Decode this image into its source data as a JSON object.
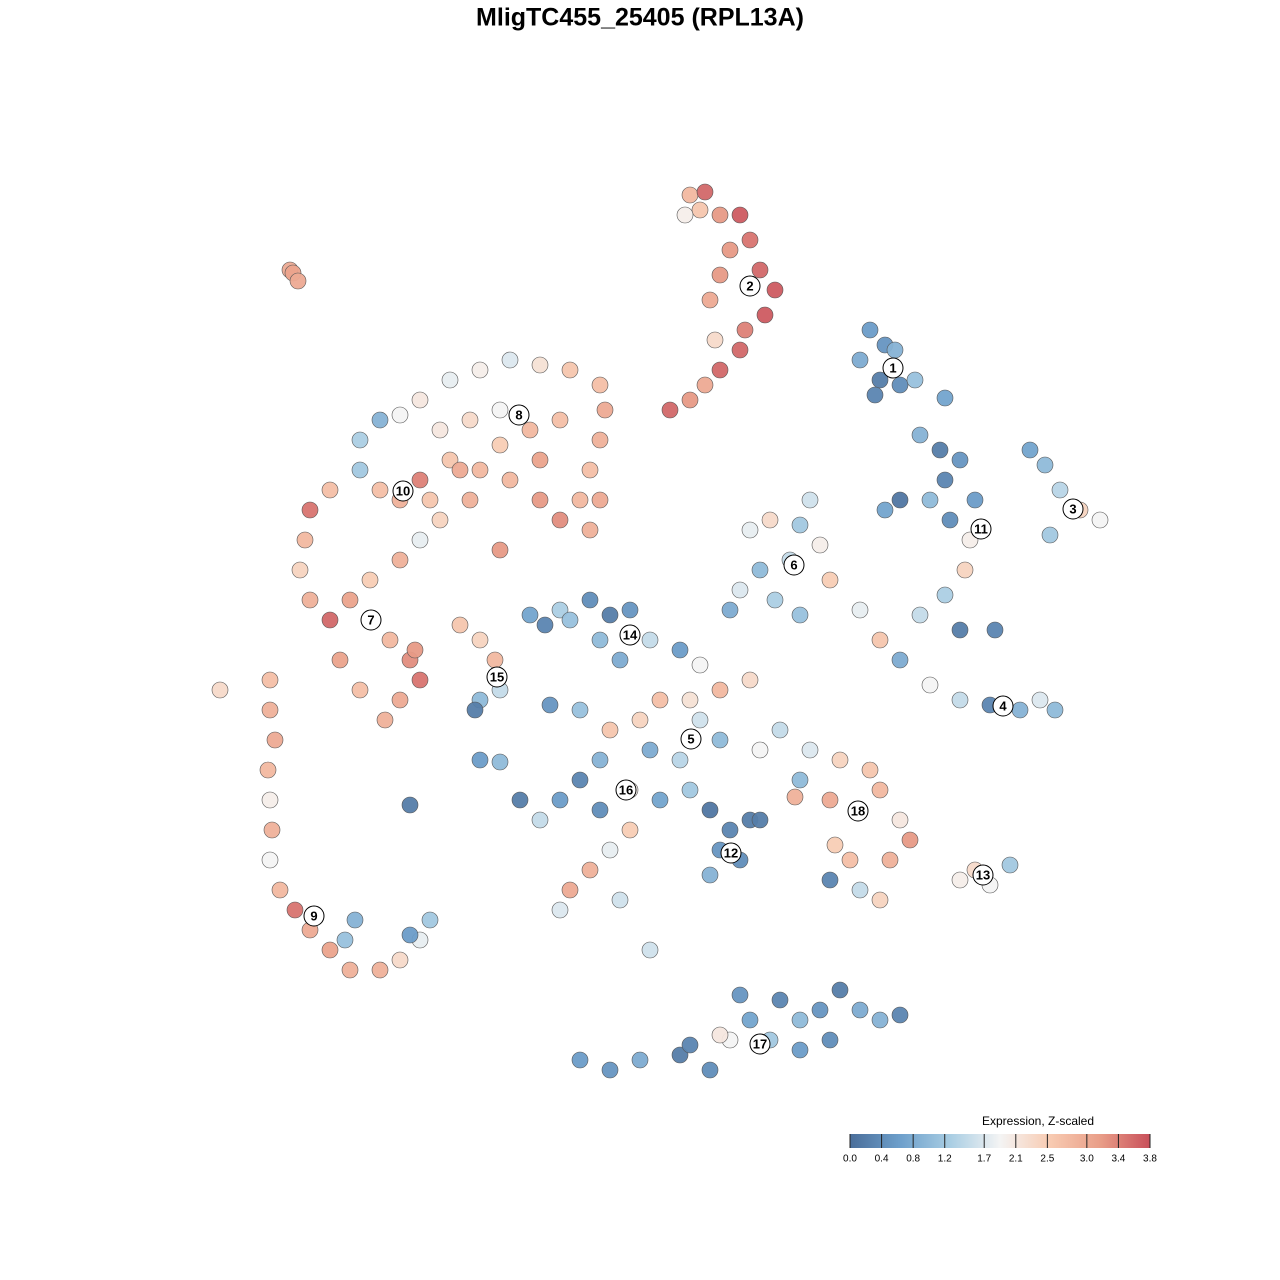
{
  "chart_data": {
    "type": "scatter",
    "title": "MligTC455_25405 (RPL13A)",
    "xlim": [
      0,
      1280
    ],
    "ylim": [
      1280,
      0
    ],
    "x": [
      690,
      705,
      720,
      740,
      750,
      760,
      775,
      765,
      745,
      740,
      720,
      705,
      690,
      670,
      710,
      720,
      700,
      685,
      730,
      715,
      290,
      293,
      298,
      870,
      885,
      860,
      880,
      900,
      875,
      895,
      915,
      945,
      1030,
      1045,
      1060,
      1080,
      1100,
      1050,
      920,
      940,
      960,
      945,
      930,
      900,
      885,
      950,
      970,
      965,
      945,
      920,
      960,
      995,
      975,
      860,
      880,
      900,
      930,
      960,
      990,
      1020,
      1055,
      1040,
      750,
      770,
      800,
      820,
      790,
      760,
      740,
      730,
      775,
      800,
      830,
      810,
      360,
      380,
      400,
      420,
      450,
      480,
      510,
      540,
      570,
      600,
      605,
      600,
      590,
      600,
      590,
      560,
      540,
      510,
      480,
      450,
      420,
      400,
      380,
      360,
      330,
      310,
      305,
      300,
      310,
      330,
      350,
      370,
      400,
      420,
      440,
      470,
      500,
      530,
      560,
      470,
      440,
      500,
      540,
      460,
      580,
      500,
      430,
      370,
      390,
      410,
      420,
      400,
      385,
      360,
      340,
      415,
      270,
      270,
      275,
      268,
      270,
      272,
      270,
      280,
      295,
      310,
      330,
      350,
      380,
      400,
      420,
      430,
      410,
      355,
      345,
      220,
      460,
      480,
      495,
      500,
      480,
      475,
      530,
      560,
      590,
      610,
      630,
      600,
      620,
      650,
      680,
      700,
      570,
      545,
      690,
      660,
      640,
      700,
      720,
      680,
      650,
      610,
      600,
      580,
      560,
      540,
      520,
      600,
      630,
      660,
      690,
      710,
      730,
      750,
      720,
      710,
      740,
      760,
      630,
      610,
      590,
      570,
      620,
      560,
      760,
      780,
      750,
      720,
      480,
      500,
      550,
      580,
      410,
      650,
      810,
      840,
      870,
      880,
      860,
      830,
      900,
      910,
      890,
      850,
      830,
      860,
      880,
      800,
      795,
      835,
      960,
      975,
      990,
      1010,
      580,
      610,
      640,
      680,
      710,
      730,
      750,
      780,
      800,
      820,
      840,
      860,
      880,
      900,
      830,
      800,
      770,
      740,
      720,
      690
    ],
    "y": [
      195,
      192,
      215,
      215,
      240,
      270,
      290,
      315,
      330,
      350,
      370,
      385,
      400,
      410,
      300,
      275,
      210,
      215,
      250,
      340,
      270,
      273,
      281,
      330,
      345,
      360,
      380,
      385,
      395,
      350,
      380,
      398,
      450,
      465,
      490,
      510,
      520,
      535,
      435,
      450,
      460,
      480,
      500,
      500,
      510,
      520,
      540,
      570,
      595,
      615,
      630,
      630,
      500,
      610,
      640,
      660,
      685,
      700,
      705,
      710,
      710,
      700,
      530,
      520,
      525,
      545,
      560,
      570,
      590,
      610,
      600,
      615,
      580,
      500,
      440,
      420,
      415,
      400,
      380,
      370,
      360,
      365,
      370,
      385,
      410,
      440,
      470,
      500,
      530,
      520,
      500,
      480,
      470,
      460,
      480,
      500,
      490,
      470,
      490,
      510,
      540,
      570,
      600,
      620,
      600,
      580,
      560,
      540,
      520,
      500,
      445,
      430,
      420,
      420,
      430,
      410,
      460,
      470,
      500,
      550,
      500,
      620,
      640,
      660,
      680,
      700,
      720,
      690,
      660,
      650,
      680,
      710,
      740,
      770,
      800,
      830,
      860,
      890,
      910,
      930,
      950,
      970,
      970,
      960,
      940,
      920,
      935,
      920,
      940,
      690,
      625,
      640,
      660,
      690,
      700,
      710,
      615,
      610,
      600,
      615,
      610,
      640,
      660,
      640,
      650,
      665,
      620,
      625,
      700,
      700,
      720,
      720,
      740,
      760,
      750,
      730,
      760,
      780,
      800,
      820,
      800,
      810,
      790,
      800,
      790,
      810,
      830,
      820,
      850,
      875,
      860,
      820,
      830,
      850,
      870,
      890,
      900,
      910,
      750,
      730,
      680,
      690,
      760,
      762,
      705,
      710,
      805,
      950,
      750,
      760,
      770,
      790,
      810,
      800,
      820,
      840,
      860,
      860,
      880,
      890,
      900,
      780,
      797,
      845,
      880,
      870,
      885,
      865,
      1060,
      1070,
      1060,
      1055,
      1070,
      1040,
      1020,
      1000,
      1020,
      1010,
      990,
      1010,
      1020,
      1015,
      1040,
      1050,
      1040,
      995,
      1035,
      1045
    ],
    "values": [
      2.8,
      3.6,
      3.2,
      3.7,
      3.5,
      3.6,
      3.7,
      3.7,
      3.4,
      3.6,
      3.6,
      3.0,
      3.2,
      3.6,
      3.0,
      3.2,
      2.6,
      2.0,
      3.2,
      2.3,
      3.0,
      3.1,
      3.0,
      0.6,
      0.5,
      0.8,
      0.2,
      0.4,
      0.3,
      0.9,
      1.1,
      0.7,
      0.7,
      1.0,
      1.4,
      2.4,
      1.9,
      1.2,
      0.9,
      0.2,
      0.5,
      0.3,
      1.0,
      0.1,
      0.7,
      0.4,
      2.0,
      2.4,
      1.3,
      1.5,
      0.2,
      0.3,
      0.6,
      1.8,
      2.6,
      0.8,
      1.9,
      1.5,
      0.3,
      0.9,
      1.0,
      1.7,
      1.8,
      2.3,
      1.2,
      2.0,
      1.5,
      1.0,
      1.7,
      0.8,
      1.3,
      1.1,
      2.5,
      1.6,
      1.3,
      0.9,
      1.9,
      2.1,
      1.8,
      2.0,
      1.7,
      2.2,
      2.6,
      2.7,
      3.0,
      2.9,
      2.7,
      3.0,
      2.9,
      3.3,
      3.2,
      2.8,
      2.8,
      2.6,
      3.4,
      2.9,
      2.7,
      1.2,
      2.7,
      3.5,
      2.8,
      2.4,
      2.9,
      3.6,
      3.1,
      2.5,
      2.9,
      1.8,
      2.4,
      2.9,
      2.5,
      2.8,
      2.7,
      2.3,
      2.1,
      1.9,
      3.1,
      3.0,
      2.8,
      3.2,
      2.6,
      2.4,
      2.8,
      3.3,
      3.5,
      3.0,
      2.9,
      2.7,
      3.1,
      3.2,
      2.7,
      2.9,
      3.0,
      2.8,
      2.0,
      2.9,
      1.9,
      2.8,
      3.5,
      3.0,
      3.1,
      2.9,
      2.9,
      2.3,
      1.8,
      1.2,
      0.6,
      0.9,
      1.1,
      2.3,
      2.6,
      2.4,
      2.8,
      1.5,
      1.0,
      0.2,
      0.7,
      1.3,
      0.4,
      0.2,
      0.5,
      1.0,
      0.8,
      1.5,
      0.6,
      1.9,
      1.1,
      0.3,
      2.2,
      2.7,
      2.4,
      1.6,
      1.0,
      1.4,
      0.8,
      2.6,
      0.9,
      0.3,
      0.6,
      1.5,
      0.2,
      0.4,
      2.0,
      0.7,
      1.2,
      0.1,
      0.3,
      0.2,
      0.5,
      0.9,
      0.4,
      0.2,
      2.5,
      1.8,
      2.9,
      3.0,
      1.6,
      1.7,
      1.9,
      1.5,
      2.3,
      2.8,
      0.6,
      1.0,
      0.5,
      1.1,
      0.2,
      1.6,
      1.7,
      2.4,
      2.6,
      2.8,
      2.3,
      3.0,
      2.1,
      3.2,
      2.9,
      2.7,
      0.3,
      1.5,
      2.4,
      1.0,
      2.9,
      2.5,
      2.0,
      2.3,
      1.9,
      1.2,
      0.6,
      0.5,
      0.8,
      0.2,
      0.4,
      1.9,
      0.7,
      0.3,
      1.0,
      0.5,
      0.2,
      0.8,
      0.9,
      0.3,
      0.4,
      0.6,
      1.2,
      0.5,
      2.1,
      0.3
    ],
    "clusters": [
      {
        "label": 1,
        "x": 893,
        "y": 368
      },
      {
        "label": 2,
        "x": 750,
        "y": 286
      },
      {
        "label": 3,
        "x": 1073,
        "y": 509
      },
      {
        "label": 4,
        "x": 1003,
        "y": 706
      },
      {
        "label": 5,
        "x": 691,
        "y": 739
      },
      {
        "label": 6,
        "x": 794,
        "y": 565
      },
      {
        "label": 7,
        "x": 371,
        "y": 620
      },
      {
        "label": 8,
        "x": 519,
        "y": 415
      },
      {
        "label": 9,
        "x": 314,
        "y": 916
      },
      {
        "label": 10,
        "x": 403,
        "y": 491
      },
      {
        "label": 11,
        "x": 981,
        "y": 529
      },
      {
        "label": 12,
        "x": 731,
        "y": 853
      },
      {
        "label": 13,
        "x": 983,
        "y": 875
      },
      {
        "label": 14,
        "x": 630,
        "y": 635
      },
      {
        "label": 15,
        "x": 497,
        "y": 677
      },
      {
        "label": 16,
        "x": 626,
        "y": 790
      },
      {
        "label": 17,
        "x": 760,
        "y": 1044
      },
      {
        "label": 18,
        "x": 858,
        "y": 811
      }
    ],
    "colorbar": {
      "title": "Expression, Z-scaled",
      "lim": [
        0,
        3.8
      ],
      "ticks": [
        {
          "value": 0,
          "label": "0.0"
        },
        0.4,
        0.8,
        1.2,
        1.7,
        2.1,
        2.5,
        {
          "value": 3,
          "label": "3.0"
        },
        3.4,
        3.8
      ],
      "colors": [
        "#4a6e9a",
        "#6d9fcb",
        "#a8cde3",
        "#f4f4f4",
        "#f8cbb2",
        "#e99e88",
        "#c84f5a"
      ]
    }
  }
}
